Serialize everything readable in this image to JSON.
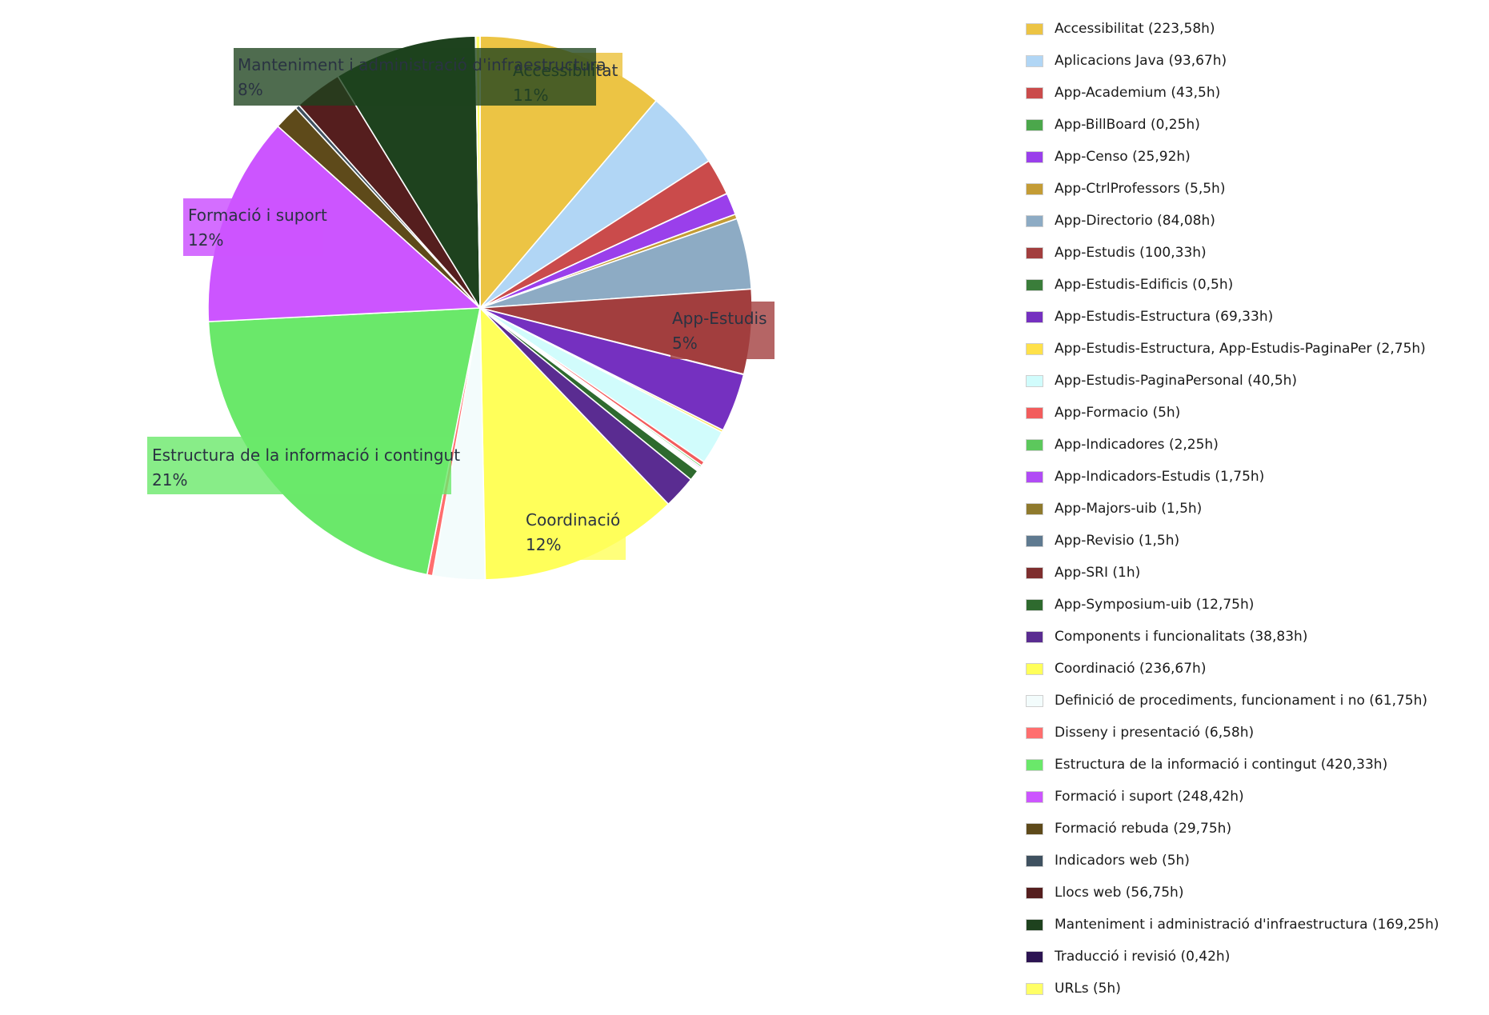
{
  "chart_data": {
    "type": "pie",
    "start_angle_deg": 0,
    "direction": "clockwise",
    "legend_position": "right",
    "slices": [
      {
        "name": "Accessibilitat",
        "legend": "Accessibilitat (223,58h)",
        "value": 223.58,
        "color": "#ECC444",
        "label_text": "Accessibilitat",
        "label_pct": "11%"
      },
      {
        "name": "Aplicacions Java",
        "legend": "Aplicacions Java (93,67h)",
        "value": 93.67,
        "color": "#B1D6F5"
      },
      {
        "name": "App-Academium",
        "legend": "App-Academium (43,5h)",
        "value": 43.5,
        "color": "#CA4B4B"
      },
      {
        "name": "App-BillBoard",
        "legend": "App-BillBoard (0,25h)",
        "value": 0.25,
        "color": "#4BA74B"
      },
      {
        "name": "App-Censo",
        "legend": "App-Censo (25,92h)",
        "value": 25.92,
        "color": "#9A3FEB"
      },
      {
        "name": "App-CtrlProfessors",
        "legend": "App-CtrlProfessors (5,5h)",
        "value": 5.5,
        "color": "#C49C35"
      },
      {
        "name": "App-Directorio",
        "legend": "App-Directorio (84,08h)",
        "value": 84.08,
        "color": "#8DABC4"
      },
      {
        "name": "App-Estudis",
        "legend": "App-Estudis (100,33h)",
        "value": 100.33,
        "color": "#A23E3E",
        "label_text": "App-Estudis",
        "label_pct": "5%"
      },
      {
        "name": "App-Estudis-Edificis",
        "legend": "App-Estudis-Edificis (0,5h)",
        "value": 0.5,
        "color": "#3A7D3A"
      },
      {
        "name": "App-Estudis-Estructura",
        "legend": "App-Estudis-Estructura (69,33h)",
        "value": 69.33,
        "color": "#7530C0"
      },
      {
        "name": "App-Estudis-Estructura, App-Estudis-PaginaPer",
        "legend": "App-Estudis-Estructura, App-Estudis-PaginaPer (2,75h)",
        "value": 2.75,
        "color": "#FFE14A"
      },
      {
        "name": "App-Estudis-PaginaPersonal",
        "legend": "App-Estudis-PaginaPersonal (40,5h)",
        "value": 40.5,
        "color": "#D1FCFC"
      },
      {
        "name": "App-Formacio",
        "legend": "App-Formacio (5h)",
        "value": 5,
        "color": "#F25C5C"
      },
      {
        "name": "App-Indicadores",
        "legend": "App-Indicadores (2,25h)",
        "value": 2.25,
        "color": "#5CC85C"
      },
      {
        "name": "App-Indicadors-Estudis",
        "legend": "App-Indicadors-Estudis (1,75h)",
        "value": 1.75,
        "color": "#B14BF5"
      },
      {
        "name": "App-Majors-uib",
        "legend": "App-Majors-uib (1,5h)",
        "value": 1.5,
        "color": "#8F7A2D"
      },
      {
        "name": "App-Revisio",
        "legend": "App-Revisio (1,5h)",
        "value": 1.5,
        "color": "#5F7A90"
      },
      {
        "name": "App-SRI",
        "legend": "App-SRI (1h)",
        "value": 1,
        "color": "#7E2E2E"
      },
      {
        "name": "App-Symposium-uib",
        "legend": "App-Symposium-uib (12,75h)",
        "value": 12.75,
        "color": "#2E6A2E"
      },
      {
        "name": "Components i funcionalitats",
        "legend": "Components i funcionalitats (38,83h)",
        "value": 38.83,
        "color": "#5A2C91"
      },
      {
        "name": "Coordinació",
        "legend": "Coordinació (236,67h)",
        "value": 236.67,
        "color": "#FFFF5A",
        "label_text": "Coordinació",
        "label_pct": "12%"
      },
      {
        "name": "Definició de procediments, funcionament i no",
        "legend": "Definició de procediments, funcionament i no (61,75h)",
        "value": 61.75,
        "color": "#F3FCFC"
      },
      {
        "name": "Disseny i presentació",
        "legend": "Disseny i presentació (6,58h)",
        "value": 6.58,
        "color": "#FF6E6E"
      },
      {
        "name": "Estructura de la informació i contingut",
        "legend": "Estructura de la informació i contingut (420,33h)",
        "value": 420.33,
        "color": "#6AE86A",
        "label_text": "Estructura de la informació i contingut",
        "label_pct": "21%"
      },
      {
        "name": "Formació i suport",
        "legend": "Formació i suport (248,42h)",
        "value": 248.42,
        "color": "#CC55FF",
        "label_text": "Formació i suport",
        "label_pct": "12%"
      },
      {
        "name": "Formació rebuda",
        "legend": "Formació rebuda (29,75h)",
        "value": 29.75,
        "color": "#5E4A1A"
      },
      {
        "name": "Indicadors web",
        "legend": "Indicadors web (5h)",
        "value": 5,
        "color": "#3F5160"
      },
      {
        "name": "Llocs web",
        "legend": "Llocs web (56,75h)",
        "value": 56.75,
        "color": "#551E1E"
      },
      {
        "name": "Manteniment i administració d'infraestructura",
        "legend": "Manteniment i administració d'infraestructura (169,25h)",
        "value": 169.25,
        "color": "#1E421E",
        "label_text": "Manteniment i administració d'infraestructura",
        "label_pct": "8%"
      },
      {
        "name": "Traducció i revisió",
        "legend": "Traducció i revisió (0,42h)",
        "value": 0.42,
        "color": "#2C1452"
      },
      {
        "name": "URLs",
        "legend": "URLs (5h)",
        "value": 5,
        "color": "#FFFF66"
      }
    ]
  }
}
